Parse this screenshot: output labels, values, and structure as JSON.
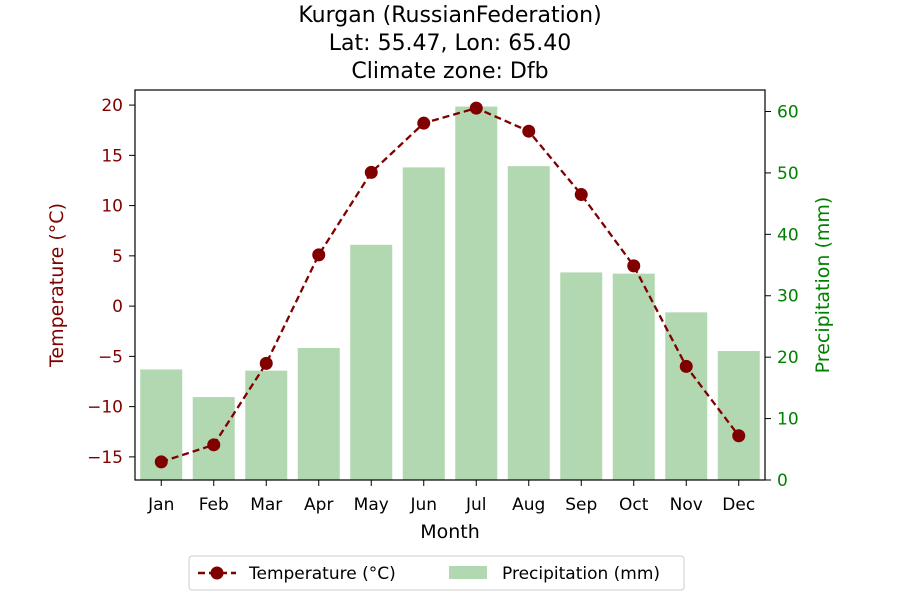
{
  "chart_data": {
    "type": "bar+line",
    "title_lines": [
      "Kurgan (RussianFederation)",
      "Lat: 55.47, Lon: 65.40",
      "Climate zone: Dfb"
    ],
    "xlabel": "Month",
    "categories": [
      "Jan",
      "Feb",
      "Mar",
      "Apr",
      "May",
      "Jun",
      "Jul",
      "Aug",
      "Sep",
      "Oct",
      "Nov",
      "Dec"
    ],
    "temperature": {
      "name": "Temperature (°C)",
      "axis_label": "Temperature (°C)",
      "values": [
        -15.5,
        -13.8,
        -5.7,
        5.1,
        13.3,
        18.2,
        19.7,
        17.4,
        11.1,
        4.0,
        -6.0,
        -12.9
      ],
      "ylim": [
        -17.3,
        21.5
      ],
      "ticks": [
        20,
        15,
        10,
        5,
        0,
        -5,
        -10,
        -15
      ],
      "tick_labels": [
        "20",
        "15",
        "10",
        "5",
        "0",
        "−5",
        "−10",
        "−15"
      ],
      "color": "#800000"
    },
    "precipitation": {
      "name": "Precipitation (mm)",
      "axis_label": "Precipitation (mm)",
      "values": [
        18.0,
        13.5,
        17.8,
        21.5,
        38.3,
        50.9,
        60.8,
        51.1,
        33.8,
        33.6,
        27.3,
        21.0
      ],
      "ylim": [
        0,
        63.5
      ],
      "ticks": [
        0,
        10,
        20,
        30,
        40,
        50,
        60
      ],
      "tick_labels": [
        "0",
        "10",
        "20",
        "30",
        "40",
        "50",
        "60"
      ],
      "color": "#b2d8b2",
      "axis_color": "#008000"
    },
    "legend": {
      "placement": "bottom-center",
      "entries": [
        "Temperature (°C)",
        "Precipitation (mm)"
      ]
    }
  }
}
